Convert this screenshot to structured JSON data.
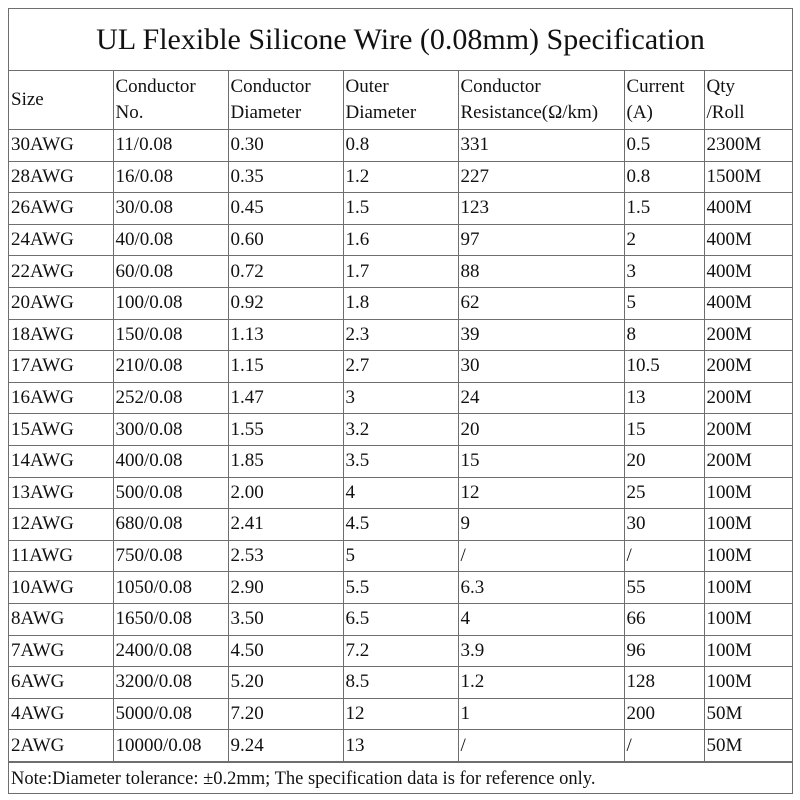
{
  "title": "UL Flexible Silicone Wire (0.08mm) Specification",
  "headers": [
    {
      "l1": "Size",
      "l2": ""
    },
    {
      "l1": "Conductor",
      "l2": "No."
    },
    {
      "l1": "Conductor",
      "l2": "Diameter"
    },
    {
      "l1": "Outer",
      "l2": "Diameter"
    },
    {
      "l1": "Conductor",
      "l2": "Resistance(Ω/km)"
    },
    {
      "l1": "Current",
      "l2": "(A)"
    },
    {
      "l1": "Qty",
      "l2": "/Roll"
    }
  ],
  "rows": [
    [
      "30AWG",
      "11/0.08",
      "0.30",
      "0.8",
      "331",
      "0.5",
      "2300M"
    ],
    [
      "28AWG",
      "16/0.08",
      "0.35",
      "1.2",
      "227",
      "0.8",
      "1500M"
    ],
    [
      "26AWG",
      "30/0.08",
      "0.45",
      "1.5",
      "123",
      "1.5",
      "400M"
    ],
    [
      "24AWG",
      "40/0.08",
      "0.60",
      "1.6",
      "97",
      "2",
      "400M"
    ],
    [
      "22AWG",
      "60/0.08",
      "0.72",
      "1.7",
      "88",
      "3",
      "400M"
    ],
    [
      "20AWG",
      "100/0.08",
      "0.92",
      "1.8",
      "62",
      "5",
      "400M"
    ],
    [
      "18AWG",
      "150/0.08",
      "1.13",
      "2.3",
      "39",
      "8",
      "200M"
    ],
    [
      "17AWG",
      "210/0.08",
      "1.15",
      "2.7",
      "30",
      "10.5",
      "200M"
    ],
    [
      "16AWG",
      "252/0.08",
      "1.47",
      "3",
      "24",
      "13",
      "200M"
    ],
    [
      "15AWG",
      "300/0.08",
      "1.55",
      "3.2",
      "20",
      "15",
      "200M"
    ],
    [
      "14AWG",
      "400/0.08",
      "1.85",
      "3.5",
      "15",
      "20",
      "200M"
    ],
    [
      "13AWG",
      "500/0.08",
      "2.00",
      "4",
      "12",
      "25",
      "100M"
    ],
    [
      "12AWG",
      "680/0.08",
      "2.41",
      "4.5",
      "9",
      "30",
      "100M"
    ],
    [
      "11AWG",
      "750/0.08",
      "2.53",
      "5",
      "/",
      "/",
      "100M"
    ],
    [
      "10AWG",
      "1050/0.08",
      "2.90",
      "5.5",
      "6.3",
      "55",
      "100M"
    ],
    [
      "8AWG",
      "1650/0.08",
      "3.50",
      "6.5",
      "4",
      "66",
      "100M"
    ],
    [
      "7AWG",
      "2400/0.08",
      "4.50",
      "7.2",
      "3.9",
      "96",
      "100M"
    ],
    [
      "6AWG",
      "3200/0.08",
      "5.20",
      "8.5",
      "1.2",
      "128",
      "100M"
    ],
    [
      "4AWG",
      "5000/0.08",
      "7.20",
      "12",
      "1",
      "200",
      "50M"
    ],
    [
      "2AWG",
      "10000/0.08",
      "9.24",
      "13",
      "/",
      "/",
      "50M"
    ]
  ],
  "note": "Note:Diameter tolerance: ±0.2mm; The specification data is for reference only."
}
